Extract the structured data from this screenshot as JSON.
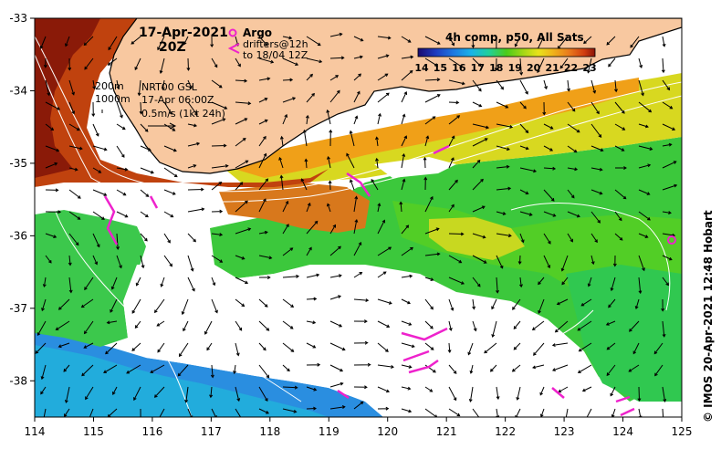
{
  "map": {
    "date_title": "17-Apr-2021",
    "time_title": "20Z",
    "legend": {
      "argo_label": "Argo",
      "drifters_label_1": "drifters@12h",
      "drifters_label_2": "to 18/04 12Z",
      "argo_color": "#ee22cc",
      "drifter_color": "#ee22cc"
    },
    "colorbar": {
      "title": "4h comp, p50, All Sats",
      "ticks": [
        "14",
        "15",
        "16",
        "17",
        "18",
        "19",
        "20",
        "21",
        "22",
        "23"
      ],
      "colors": [
        "#1a0a6e",
        "#1f3bbf",
        "#1e78e0",
        "#19b3e8",
        "#22d09a",
        "#4ccc1a",
        "#a8d816",
        "#e8e21c",
        "#f0b41a",
        "#e8761c",
        "#d03c10",
        "#8a1408"
      ]
    },
    "info": {
      "contour_200": "200m",
      "contour_1000": "1000m",
      "product": "NRT00 GSL",
      "product_time": "17-Apr 06:00Z",
      "scale": "0.5m/s (1kt 24h)"
    },
    "x_ticks": [
      "114",
      "115",
      "116",
      "117",
      "118",
      "119",
      "120",
      "121",
      "122",
      "123",
      "124",
      "125"
    ],
    "y_ticks": [
      "-33",
      "-34",
      "-35",
      "-36",
      "-37",
      "-38"
    ],
    "x_range": [
      114,
      125
    ],
    "y_range": [
      -38.5,
      -33
    ],
    "credit": "© IMOS 20-Apr-2021 12:48 Hobart",
    "colors": {
      "land": "#f8c8a0",
      "coast": "#000000",
      "cloud": "#ffffff",
      "bathy": "#ffffff"
    }
  }
}
